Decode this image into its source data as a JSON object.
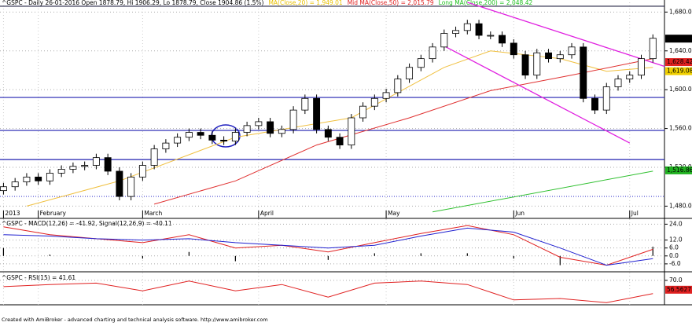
{
  "chart_data": [
    {
      "type": "candlestick",
      "title": "^GSPC - Daily 26-01-2016 Open 1878.79, Hi 1906.29, Lo 1878.79, Close 1904.86 (1.5%)",
      "indicator_labels": [
        {
          "label": "MA(Close,20) = 1,949.01",
          "color": "#e8c000"
        },
        {
          "label": "Mid MA(Close,50) = 2,015.79",
          "color": "#e02020"
        },
        {
          "label": "Long MA(Close,200) = 2,048.42",
          "color": "#20c020"
        }
      ],
      "open": [
        1496,
        1500,
        1505,
        1510,
        1506,
        1514,
        1518,
        1521,
        1522,
        1530,
        1516,
        1490,
        1510,
        1522,
        1539,
        1545,
        1551,
        1556,
        1553,
        1548,
        1547,
        1556,
        1563,
        1567,
        1555,
        1559,
        1579,
        1591,
        1559,
        1551,
        1543,
        1571,
        1583,
        1591,
        1597,
        1611,
        1623,
        1632,
        1644,
        1658,
        1661,
        1668,
        1656,
        1656,
        1648,
        1636,
        1615,
        1638,
        1632,
        1636,
        1644,
        1591,
        1579,
        1603,
        1611,
        1615,
        1632
      ],
      "high": [
        1504,
        1509,
        1514,
        1514,
        1518,
        1522,
        1525,
        1526,
        1534,
        1534,
        1520,
        1514,
        1526,
        1543,
        1549,
        1555,
        1560,
        1560,
        1557,
        1552,
        1560,
        1567,
        1571,
        1571,
        1563,
        1583,
        1595,
        1595,
        1563,
        1555,
        1575,
        1587,
        1595,
        1601,
        1615,
        1627,
        1636,
        1648,
        1662,
        1665,
        1672,
        1672,
        1660,
        1660,
        1652,
        1640,
        1642,
        1642,
        1640,
        1648,
        1648,
        1595,
        1607,
        1615,
        1619,
        1636,
        1657
      ],
      "low": [
        1492,
        1496,
        1501,
        1502,
        1502,
        1510,
        1514,
        1517,
        1518,
        1512,
        1486,
        1486,
        1506,
        1518,
        1535,
        1541,
        1547,
        1549,
        1544,
        1543,
        1543,
        1552,
        1559,
        1551,
        1551,
        1555,
        1575,
        1555,
        1547,
        1539,
        1539,
        1567,
        1579,
        1587,
        1593,
        1607,
        1619,
        1628,
        1640,
        1654,
        1657,
        1652,
        1652,
        1644,
        1632,
        1611,
        1611,
        1628,
        1628,
        1632,
        1587,
        1575,
        1575,
        1599,
        1607,
        1611,
        1628
      ],
      "close": [
        1500,
        1505,
        1510,
        1506,
        1514,
        1518,
        1521,
        1522,
        1530,
        1516,
        1490,
        1510,
        1522,
        1539,
        1545,
        1551,
        1556,
        1553,
        1548,
        1547,
        1556,
        1563,
        1567,
        1555,
        1559,
        1579,
        1591,
        1559,
        1551,
        1543,
        1571,
        1583,
        1591,
        1597,
        1611,
        1623,
        1632,
        1644,
        1658,
        1661,
        1668,
        1656,
        1656,
        1648,
        1636,
        1615,
        1638,
        1632,
        1636,
        1644,
        1591,
        1579,
        1603,
        1611,
        1615,
        1632,
        1653
      ],
      "xlim": [
        -0.3,
        57
      ],
      "x_tick_index": [
        0,
        3,
        12,
        22,
        33,
        44,
        54
      ],
      "x_tick_labels": [
        "2013",
        "February",
        "March",
        "April",
        "May",
        "Jun",
        "Jul"
      ],
      "ylim": [
        1469,
        1690
      ],
      "yticks": [
        {
          "value": 1680,
          "label": "1,680.0"
        },
        {
          "value": 1640,
          "label": "1,640.0"
        },
        {
          "value": 1600,
          "label": "1,600.0"
        },
        {
          "value": 1560,
          "label": "1,560.0"
        },
        {
          "value": 1520,
          "label": "1,520.0"
        },
        {
          "value": 1480,
          "label": "1,480.0"
        }
      ],
      "ma_lines": [
        {
          "name": "MA20",
          "color": "#f0c040",
          "x": [
            2,
            10,
            20,
            30,
            38,
            42,
            48,
            52,
            56
          ],
          "values": [
            1480,
            1506,
            1551,
            1571,
            1623,
            1640,
            1632,
            1619,
            1623
          ]
        },
        {
          "name": "MA50",
          "color": "#e03030",
          "x": [
            13,
            20,
            27,
            35,
            42,
            49,
            56
          ],
          "values": [
            1482,
            1506,
            1543,
            1571,
            1599,
            1615,
            1632
          ]
        },
        {
          "name": "MA200",
          "color": "#30c030",
          "x": [
            37,
            56
          ],
          "values": [
            1474,
            1516
          ]
        }
      ],
      "levels": [
        {
          "value": 1686,
          "color": "#202040",
          "style": "solid"
        },
        {
          "value": 1592,
          "color": "#2020b0",
          "style": "solid"
        },
        {
          "value": 1558,
          "color": "#2020b0",
          "style": "solid"
        },
        {
          "value": 1528,
          "color": "#2020b0",
          "style": "solid"
        },
        {
          "value": 1490,
          "color": "#4040d0",
          "style": "dotted"
        }
      ],
      "trendlines": [
        {
          "x": [
            40,
            57
          ],
          "values": [
            1690,
            1624
          ],
          "color": "#e020e0"
        },
        {
          "x": [
            38,
            54
          ],
          "values": [
            1645,
            1545
          ],
          "color": "#e020e0"
        }
      ],
      "price_badges": [
        {
          "value": 1652.62,
          "label": "1,652.62",
          "color": "#000000"
        },
        {
          "value": 1628.42,
          "label": "1,628.42",
          "color": "#e02020"
        },
        {
          "value": 1619.08,
          "label": "1,619.08",
          "color": "#f0d000"
        },
        {
          "value": 1516.86,
          "label": "1,516.86",
          "color": "#20b020"
        }
      ]
    },
    {
      "type": "macd",
      "title": "^GSPC - MACD(12,26) = -41.92, Signal(12,26,9) = -40.11",
      "x": [
        0,
        4,
        8,
        12,
        16,
        20,
        24,
        28,
        32,
        36,
        40,
        44,
        48,
        52,
        56
      ],
      "series": [
        {
          "name": "MACD",
          "color": "#e02020",
          "values": [
            22,
            16,
            13,
            10,
            16,
            6,
            8,
            3,
            10,
            17,
            23,
            16,
            -1,
            -7,
            5
          ]
        },
        {
          "name": "Signal",
          "color": "#2020d0",
          "values": [
            16,
            15,
            13,
            12,
            13,
            10,
            8,
            6,
            8,
            15,
            21,
            18,
            6,
            -7,
            -2
          ]
        }
      ],
      "histogram": [
        6,
        1,
        0,
        -2,
        3,
        -4,
        0,
        -3,
        2,
        2,
        2,
        -2,
        -7,
        0,
        7
      ],
      "ylim": [
        -12,
        26
      ],
      "yticks": [
        {
          "value": 24,
          "label": "24.0"
        },
        {
          "value": 12,
          "label": "12.0"
        },
        {
          "value": 6,
          "label": "6.0"
        },
        {
          "value": 0,
          "label": "0.0"
        },
        {
          "value": -6,
          "label": "-6.0"
        }
      ]
    },
    {
      "type": "rsi",
      "title": "^GSPC - RSI(15) = 41.61",
      "x": [
        0,
        4,
        8,
        12,
        16,
        20,
        24,
        28,
        32,
        36,
        40,
        44,
        48,
        52,
        56
      ],
      "values": [
        61,
        64,
        66,
        55,
        69,
        55,
        64,
        46,
        66,
        69,
        64,
        42,
        44,
        38,
        51
      ],
      "color": "#e02020",
      "ylim": [
        35,
        80
      ],
      "yticks": [
        {
          "value": 70,
          "label": "70.0"
        }
      ],
      "badge": {
        "value": 56.5627,
        "label": "56.5627"
      }
    }
  ],
  "footer": "Created with AmiBroker - advanced charting and technical analysis software. http://www.amibroker.com"
}
